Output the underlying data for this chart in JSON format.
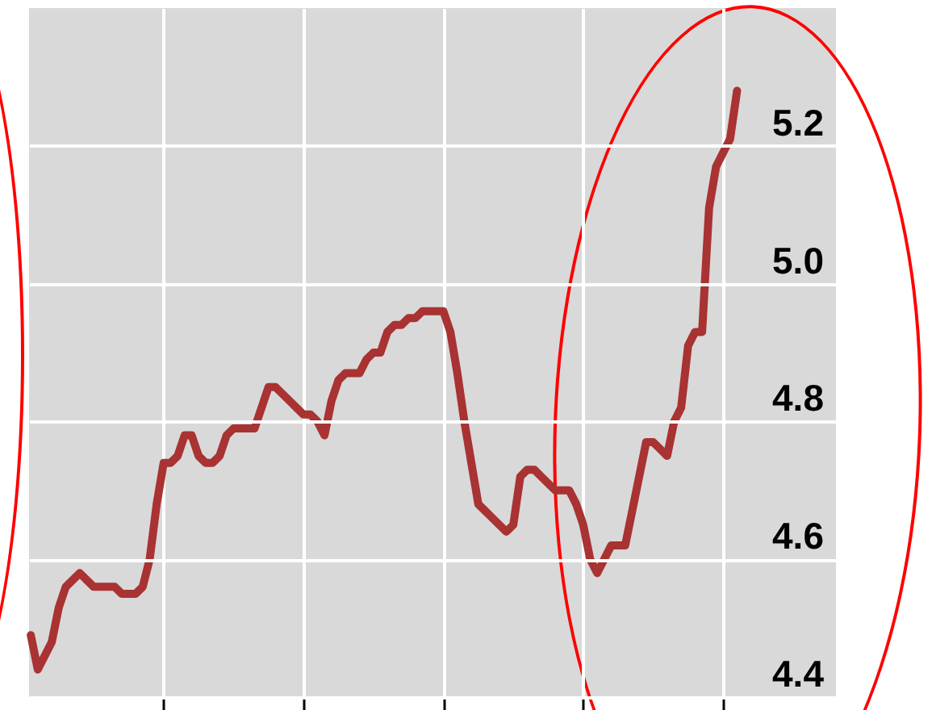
{
  "chart_data": {
    "type": "line",
    "categories": [
      null,
      null,
      null,
      null,
      null,
      null,
      null,
      null,
      null,
      null,
      null,
      null,
      null,
      null,
      null,
      null,
      null,
      null,
      null,
      null,
      null,
      null,
      null,
      null,
      null,
      null,
      null,
      null,
      null,
      null,
      null,
      null,
      null,
      null,
      null,
      null,
      null,
      null,
      null,
      null,
      null,
      null,
      null,
      null,
      null,
      null,
      null,
      null,
      null,
      null,
      null,
      null,
      null,
      null,
      null,
      null,
      null,
      null,
      null,
      null,
      null,
      null,
      null,
      null,
      null,
      null,
      null,
      null,
      null,
      null,
      null,
      null,
      null,
      null,
      null,
      null,
      null,
      null,
      null,
      null,
      null,
      null,
      null,
      null,
      null,
      null,
      null,
      null,
      null,
      null,
      null,
      null,
      null,
      null,
      null,
      null,
      null,
      null,
      null,
      null,
      null,
      null
    ],
    "series": [
      {
        "color": "#a93232",
        "values": [
          4.49,
          4.44,
          4.46,
          4.48,
          4.53,
          4.56,
          4.57,
          4.58,
          4.57,
          4.56,
          4.56,
          4.56,
          4.56,
          4.55,
          4.55,
          4.55,
          4.56,
          4.6,
          4.68,
          4.74,
          4.74,
          4.75,
          4.78,
          4.78,
          4.75,
          4.74,
          4.74,
          4.75,
          4.78,
          4.79,
          4.79,
          4.79,
          4.79,
          4.82,
          4.85,
          4.85,
          4.84,
          4.83,
          4.82,
          4.81,
          4.81,
          4.8,
          4.78,
          4.83,
          4.86,
          4.87,
          4.87,
          4.87,
          4.89,
          4.9,
          4.9,
          4.93,
          4.94,
          4.94,
          4.95,
          4.95,
          4.96,
          4.96,
          4.96,
          4.96,
          4.93,
          4.87,
          4.8,
          4.74,
          4.68,
          4.67,
          4.66,
          4.65,
          4.64,
          4.65,
          4.72,
          4.73,
          4.73,
          4.72,
          4.71,
          4.7,
          4.7,
          4.7,
          4.68,
          4.65,
          4.6,
          4.58,
          4.6,
          4.62,
          4.62,
          4.62,
          4.67,
          4.72,
          4.77,
          4.77,
          4.76,
          4.75,
          4.8,
          4.82,
          4.91,
          4.93,
          4.93,
          5.11,
          5.17,
          5.19,
          5.21,
          5.28
        ]
      }
    ],
    "ylim": [
      4.4,
      5.4
    ],
    "yticks": [
      4.4,
      4.6,
      4.8,
      {
        "value": 5,
        "label": "5.0"
      },
      5.2
    ],
    "grid": true,
    "tick_labels": "y",
    "line_style": "solid"
  }
}
